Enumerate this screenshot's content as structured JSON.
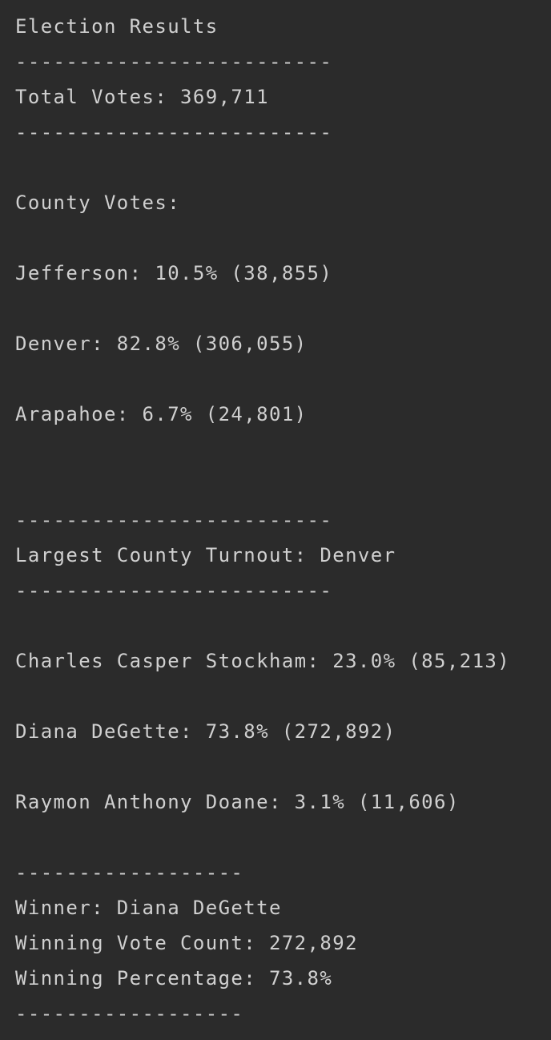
{
  "console": {
    "title": "Election Results",
    "separator_long": "-------------------------",
    "separator_short": "------------------",
    "total_votes": "Total Votes: 369,711",
    "county_votes_header": "County Votes:",
    "counties": [
      "Jefferson: 10.5% (38,855)",
      "Denver: 82.8% (306,055)",
      "Arapahoe: 6.7% (24,801)"
    ],
    "largest_county": "Largest County Turnout: Denver",
    "candidates": [
      "Charles Casper Stockham: 23.0% (85,213)",
      "Diana DeGette: 73.8% (272,892)",
      "Raymon Anthony Doane: 3.1% (11,606)"
    ],
    "winner": "Winner: Diana DeGette",
    "winning_vote_count": "Winning Vote Count: 272,892",
    "winning_percentage": "Winning Percentage: 73.8%"
  }
}
